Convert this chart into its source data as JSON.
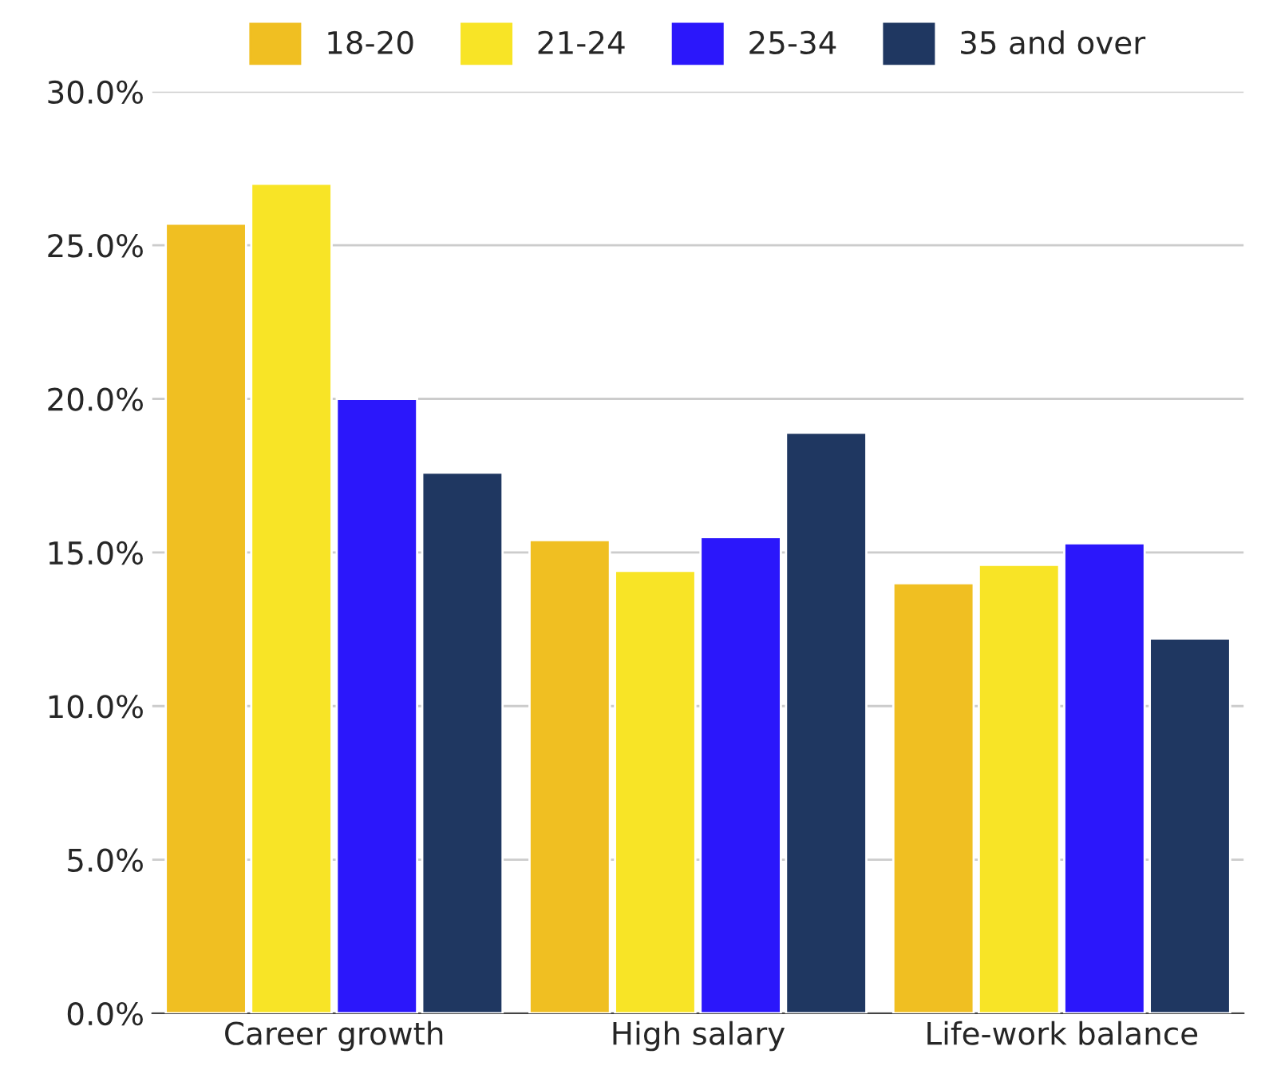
{
  "chart_data": {
    "type": "bar",
    "categories": [
      "Career growth",
      "High salary",
      "Life-work balance"
    ],
    "series": [
      {
        "name": "18-20",
        "color": "#f0bf22",
        "values": [
          25.7,
          15.4,
          14.0
        ]
      },
      {
        "name": "21-24",
        "color": "#f8e426",
        "values": [
          27.0,
          14.4,
          14.6
        ]
      },
      {
        "name": "25-34",
        "color": "#2b17fb",
        "values": [
          20.0,
          15.5,
          15.3
        ]
      },
      {
        "name": "35 and over",
        "color": "#1f3761",
        "values": [
          17.6,
          18.9,
          12.2
        ]
      }
    ],
    "ylim": [
      0,
      30
    ],
    "yticks": [
      {
        "value": 0,
        "label": "0.0%"
      },
      {
        "value": 5,
        "label": "5.0%"
      },
      {
        "value": 10,
        "label": "10.0%"
      },
      {
        "value": 15,
        "label": "15.0%"
      },
      {
        "value": 20,
        "label": "20.0%"
      },
      {
        "value": 25,
        "label": "25.0%"
      },
      {
        "value": 30,
        "label": "30.0%"
      }
    ],
    "grid": "y",
    "legend": "top"
  }
}
